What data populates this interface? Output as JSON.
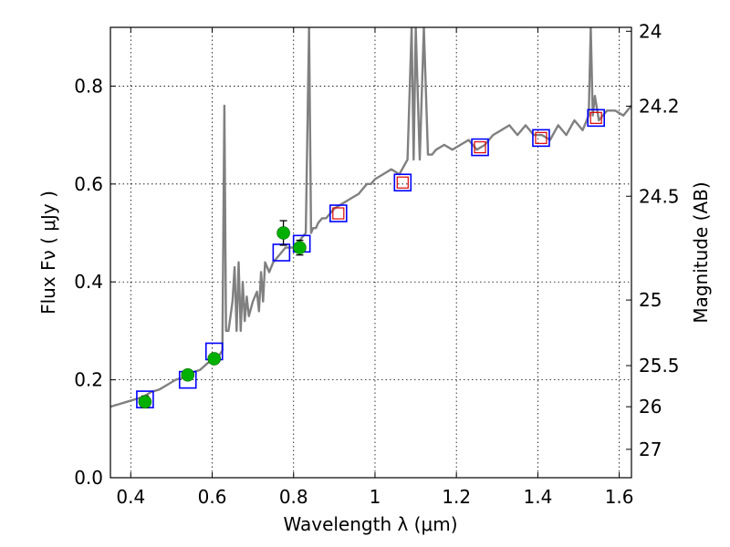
{
  "chart_data": {
    "type": "scatter",
    "xlabel": "Wavelength  λ (μm)",
    "ylabel": "Flux  Fν  ( μJy )",
    "y2label": "Magnitude (AB)",
    "xlim": [
      0.35,
      1.63
    ],
    "ylim": [
      0.0,
      0.92
    ],
    "x_ticks": [
      0.4,
      0.6,
      0.8,
      1.0,
      1.2,
      1.4,
      1.6
    ],
    "x_tick_labels": [
      "0.4",
      "0.6",
      "0.8",
      "1",
      "1.2",
      "1.4",
      "1.6"
    ],
    "y_ticks": [
      0.0,
      0.2,
      0.4,
      0.6,
      0.8
    ],
    "y_tick_labels": [
      "0.0",
      "0.2",
      "0.4",
      "0.6",
      "0.8"
    ],
    "y2_ticks": [
      {
        "label": "24",
        "flux": 0.912
      },
      {
        "label": "24.2",
        "flux": 0.759
      },
      {
        "label": "24.5",
        "flux": 0.575
      },
      {
        "label": "25",
        "flux": 0.363
      },
      {
        "label": "25.5",
        "flux": 0.229
      },
      {
        "label": "26",
        "flux": 0.145
      },
      {
        "label": "27",
        "flux": 0.058
      }
    ],
    "grid": true,
    "colors": {
      "spectrum": "#808080",
      "observed": "#00b000",
      "model_box": "#0000ff",
      "model_inner": "#dd0000"
    },
    "spectrum": {
      "x": [
        0.35,
        0.37,
        0.39,
        0.41,
        0.43,
        0.45,
        0.47,
        0.49,
        0.51,
        0.53,
        0.55,
        0.57,
        0.59,
        0.61,
        0.625,
        0.63,
        0.634,
        0.64,
        0.65,
        0.655,
        0.66,
        0.665,
        0.67,
        0.675,
        0.68,
        0.685,
        0.69,
        0.7,
        0.71,
        0.715,
        0.72,
        0.725,
        0.73,
        0.74,
        0.75,
        0.76,
        0.77,
        0.78,
        0.79,
        0.8,
        0.81,
        0.82,
        0.83,
        0.838,
        0.843,
        0.848,
        0.855,
        0.86,
        0.87,
        0.88,
        0.89,
        0.9,
        0.92,
        0.94,
        0.96,
        0.98,
        0.99,
        1.0,
        1.02,
        1.04,
        1.06,
        1.08,
        1.09,
        1.095,
        1.1,
        1.11,
        1.12,
        1.13,
        1.14,
        1.15,
        1.17,
        1.19,
        1.21,
        1.23,
        1.25,
        1.27,
        1.29,
        1.31,
        1.33,
        1.35,
        1.37,
        1.39,
        1.41,
        1.43,
        1.45,
        1.47,
        1.49,
        1.51,
        1.525,
        1.53,
        1.535,
        1.54,
        1.55,
        1.57,
        1.59,
        1.61,
        1.63
      ],
      "y": [
        0.145,
        0.15,
        0.155,
        0.16,
        0.165,
        0.175,
        0.18,
        0.19,
        0.2,
        0.205,
        0.215,
        0.22,
        0.235,
        0.24,
        0.26,
        0.76,
        0.3,
        0.3,
        0.36,
        0.43,
        0.3,
        0.44,
        0.3,
        0.4,
        0.32,
        0.37,
        0.33,
        0.36,
        0.38,
        0.34,
        0.42,
        0.36,
        0.44,
        0.42,
        0.44,
        0.45,
        0.46,
        0.47,
        0.47,
        0.47,
        0.48,
        0.49,
        0.5,
        0.92,
        0.5,
        0.51,
        0.51,
        0.52,
        0.53,
        0.53,
        0.54,
        0.55,
        0.56,
        0.57,
        0.58,
        0.6,
        0.6,
        0.61,
        0.62,
        0.63,
        0.62,
        0.65,
        0.92,
        0.65,
        0.92,
        0.65,
        0.92,
        0.66,
        0.66,
        0.67,
        0.68,
        0.67,
        0.68,
        0.69,
        0.67,
        0.68,
        0.7,
        0.71,
        0.72,
        0.7,
        0.72,
        0.7,
        0.7,
        0.69,
        0.72,
        0.7,
        0.73,
        0.71,
        0.74,
        0.92,
        0.74,
        0.78,
        0.73,
        0.75,
        0.75,
        0.74,
        0.76
      ]
    },
    "observed": {
      "name": "",
      "points": [
        {
          "x": 0.435,
          "y": 0.155,
          "err": 0.012
        },
        {
          "x": 0.54,
          "y": 0.21,
          "err": 0.01
        },
        {
          "x": 0.605,
          "y": 0.243,
          "err": 0.008
        },
        {
          "x": 0.775,
          "y": 0.5,
          "err": 0.025
        },
        {
          "x": 0.815,
          "y": 0.47,
          "err": 0.015
        }
      ]
    },
    "model_boxes": [
      {
        "x": 0.435,
        "y": 0.16,
        "inner": false
      },
      {
        "x": 0.54,
        "y": 0.2,
        "inner": false
      },
      {
        "x": 0.605,
        "y": 0.258,
        "inner": false
      },
      {
        "x": 0.77,
        "y": 0.46,
        "inner": false
      },
      {
        "x": 0.82,
        "y": 0.478,
        "inner": false
      },
      {
        "x": 0.91,
        "y": 0.54,
        "inner": true
      },
      {
        "x": 1.068,
        "y": 0.603,
        "inner": true
      },
      {
        "x": 1.258,
        "y": 0.675,
        "inner": true
      },
      {
        "x": 1.408,
        "y": 0.694,
        "inner": true
      },
      {
        "x": 1.543,
        "y": 0.735,
        "inner": true
      }
    ]
  }
}
